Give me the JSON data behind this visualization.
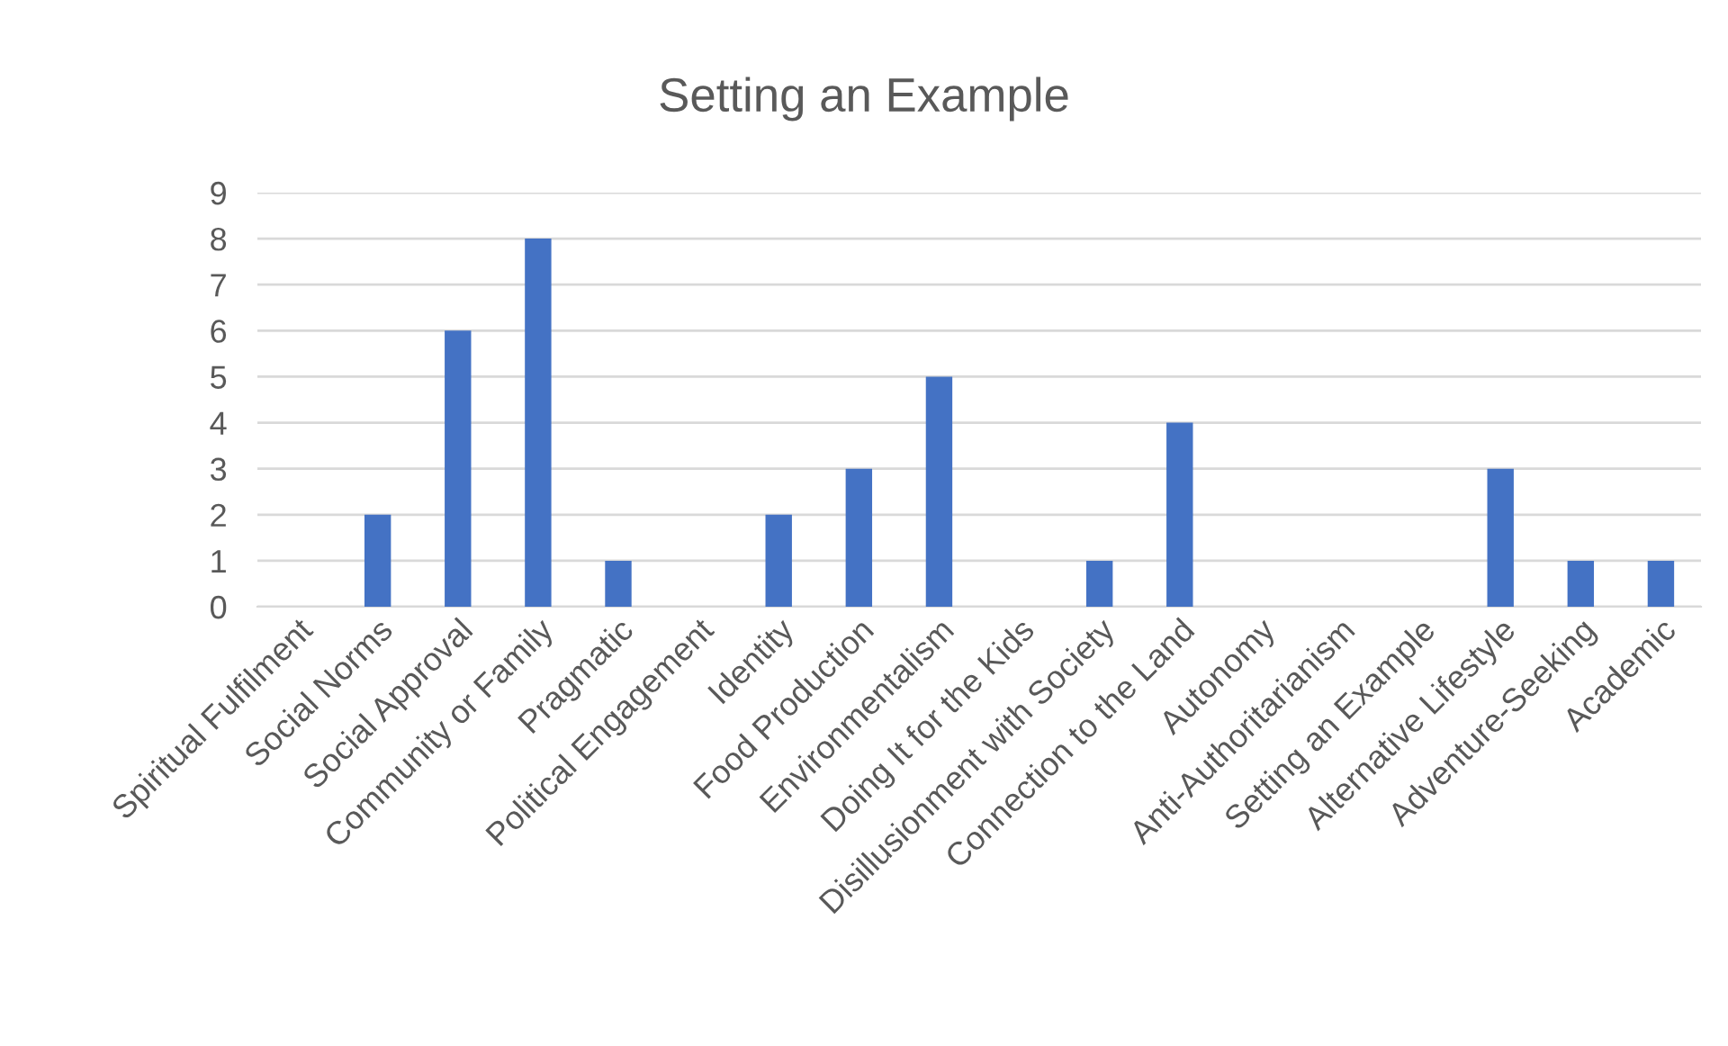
{
  "chart_data": {
    "type": "bar",
    "title": "Setting an Example",
    "categories": [
      "Spiritual Fulfilment",
      "Social Norms",
      "Social Approval",
      "Community or Family",
      "Pragmatic",
      "Political Engagement",
      "Identity",
      "Food Production",
      "Environmentalism",
      "Doing It for the Kids",
      "Disillusionment with Society",
      "Connection to the Land",
      "Autonomy",
      "Anti-Authoritarianism",
      "Setting an Example",
      "Alternative Lifestyle",
      "Adventure-Seeking",
      "Academic"
    ],
    "values": [
      0,
      2,
      6,
      8,
      1,
      0,
      2,
      3,
      5,
      0,
      1,
      4,
      0,
      0,
      0,
      3,
      1,
      1
    ],
    "color": "#4472c4",
    "ylim": [
      0,
      9
    ],
    "yticks": [
      0,
      1,
      2,
      3,
      4,
      5,
      6,
      7,
      8,
      9
    ],
    "grid": "y",
    "legend": false
  }
}
